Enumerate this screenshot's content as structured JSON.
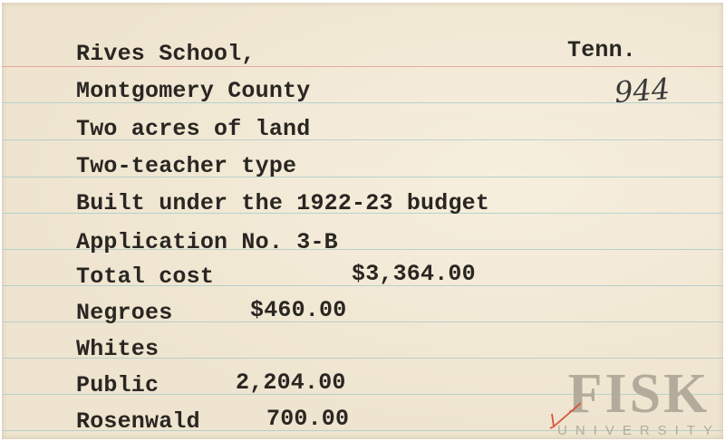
{
  "card": {
    "state": "Tenn.",
    "card_number": "944",
    "lines": [
      {
        "label": "Rives School,"
      },
      {
        "label": "Montgomery County"
      },
      {
        "label": "Two acres of land"
      },
      {
        "label": "Two-teacher type"
      },
      {
        "label": "Built under the 1922-23 budget"
      },
      {
        "label": "Application No. 3-B"
      },
      {
        "label": "Total cost",
        "value": "$3,364.00"
      },
      {
        "label": "Negroes",
        "value": "$460.00"
      },
      {
        "label": "Whites"
      },
      {
        "label": "Public",
        "value": "2,204.00"
      },
      {
        "label": "Rosenwald",
        "value": "700.00"
      }
    ]
  },
  "watermark": {
    "name": "FISK",
    "subtitle": "UNIVERSITY"
  },
  "colors": {
    "card": "#eee4cf",
    "red_rule": "#e59a8f",
    "blue_rule": "#a8cbc9",
    "check_mark": "#d9533a"
  }
}
